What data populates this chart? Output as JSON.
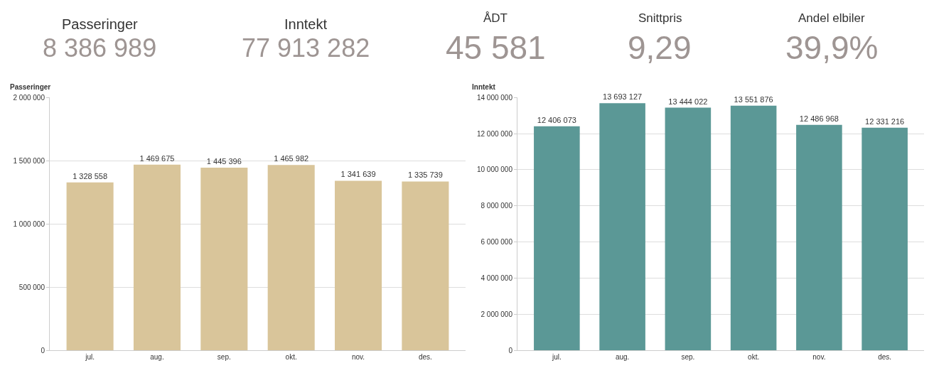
{
  "chart_data": [
    {
      "type": "other",
      "annotations": [
        "Passeringer",
        "8 386 989",
        "Inntekt",
        "77 913 282",
        "ÅDT",
        "45 581",
        "Snittpris",
        "9,29",
        "Andel elbiler",
        "39,9%"
      ]
    },
    {
      "type": "bar",
      "title": "Passeringer",
      "categories": [
        "jul.",
        "aug.",
        "sep.",
        "okt.",
        "nov.",
        "des."
      ],
      "values": [
        1328558,
        1469675,
        1445396,
        1465982,
        1341639,
        1335739
      ],
      "color": "#d9c59a",
      "data_labels": true,
      "grid": "y",
      "ylim": [
        0,
        2000000
      ],
      "yticks": [
        {
          "value": 0,
          "label": "0"
        },
        {
          "value": 500000,
          "label": "500 000"
        },
        {
          "value": 1000000,
          "label": "1 000 000"
        },
        {
          "value": 1500000,
          "label": "1 500 000"
        },
        {
          "value": 2000000,
          "label": "2 000 000"
        }
      ]
    },
    {
      "type": "bar",
      "title": "Inntekt",
      "categories": [
        "jul.",
        "aug.",
        "sep.",
        "okt.",
        "nov.",
        "des."
      ],
      "values": [
        12406073,
        13693127,
        13444022,
        13551876,
        12486968,
        12331216
      ],
      "color": "#5b9896",
      "data_labels": true,
      "grid": "y",
      "ylim": [
        0,
        14000000
      ],
      "yticks": [
        {
          "value": 0,
          "label": "0"
        },
        {
          "value": 2000000,
          "label": "2 000 000"
        },
        {
          "value": 4000000,
          "label": "4 000 000"
        },
        {
          "value": 6000000,
          "label": "6 000 000"
        },
        {
          "value": 8000000,
          "label": "8 000 000"
        },
        {
          "value": 10000000,
          "label": "10 000 000"
        },
        {
          "value": 12000000,
          "label": "12 000 000"
        },
        {
          "value": 14000000,
          "label": "14 000 000"
        }
      ]
    }
  ]
}
